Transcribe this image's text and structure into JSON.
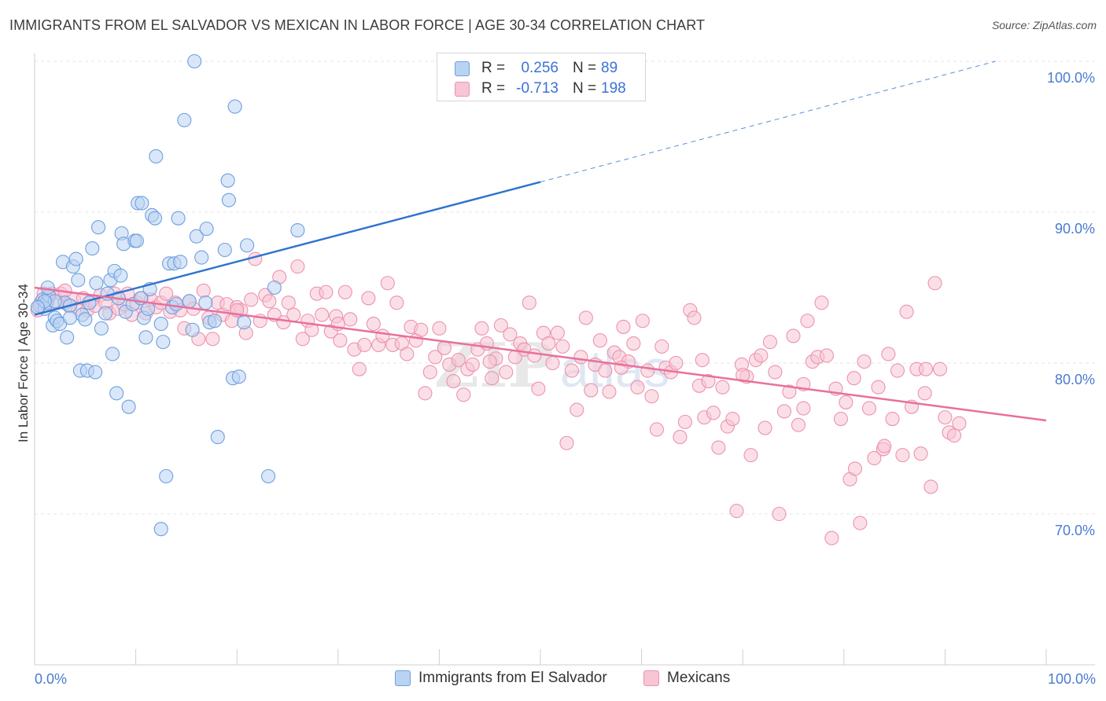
{
  "header": {
    "title": "IMMIGRANTS FROM EL SALVADOR VS MEXICAN IN LABOR FORCE | AGE 30-34 CORRELATION CHART",
    "source": "Source: ZipAtlas.com"
  },
  "legend": {
    "rows": [
      {
        "r_label": "R =",
        "r_value": "0.256",
        "n_label": "N =",
        "n_value": "89"
      },
      {
        "r_label": "R =",
        "r_value": "-0.713",
        "n_label": "N =",
        "n_value": "198"
      }
    ]
  },
  "bottom_legend": [
    "Immigrants from El Salvador",
    "Mexicans"
  ],
  "colors": {
    "blue_fill": "#b9d3f3",
    "blue_stroke": "#6f9fe0",
    "blue_line": "#2f73d0",
    "pink_fill": "#f7c5d4",
    "pink_stroke": "#ec93b0",
    "pink_line": "#e8709a",
    "tick_label": "#4a7bd0",
    "grid": "#e4e4e4"
  },
  "chart_data": {
    "type": "scatter",
    "title": "IMMIGRANTS FROM EL SALVADOR VS MEXICAN IN LABOR FORCE | AGE 30-34 CORRELATION CHART",
    "xlabel": "",
    "ylabel": "In Labor Force | Age 30-34",
    "xlim": [
      0,
      100
    ],
    "ylim": [
      60,
      102
    ],
    "x_tick_labels": [
      "0.0%",
      "100.0%"
    ],
    "y_ticks": [
      70,
      80,
      90,
      100
    ],
    "y_tick_labels": [
      "70.0%",
      "80.0%",
      "90.0%",
      "100.0%"
    ],
    "grid": true,
    "watermark": "ZIPatlas",
    "series": [
      {
        "name": "Immigrants from El Salvador",
        "color": "#6f9fe0",
        "r": 0.256,
        "n": 89,
        "trend": {
          "x0": 0,
          "y0": 83.2,
          "x1": 50,
          "y1": 92.0,
          "dashed_to_x": 95,
          "dashed_to_y": 100
        },
        "points": [
          [
            0.5,
            83.8
          ],
          [
            0.8,
            84.2
          ],
          [
            1.0,
            83.6
          ],
          [
            1.2,
            84.0
          ],
          [
            1.4,
            84.5
          ],
          [
            1.3,
            85.0
          ],
          [
            1.8,
            82.5
          ],
          [
            2.0,
            83.0
          ],
          [
            2.2,
            82.8
          ],
          [
            2.5,
            82.6
          ],
          [
            2.8,
            86.7
          ],
          [
            3.0,
            84.0
          ],
          [
            3.2,
            81.7
          ],
          [
            3.5,
            83.8
          ],
          [
            3.8,
            86.4
          ],
          [
            4.1,
            86.9
          ],
          [
            4.3,
            85.5
          ],
          [
            4.5,
            79.5
          ],
          [
            4.7,
            83.2
          ],
          [
            5.0,
            82.9
          ],
          [
            5.2,
            79.5
          ],
          [
            5.4,
            84.0
          ],
          [
            5.7,
            87.6
          ],
          [
            6.0,
            79.4
          ],
          [
            6.1,
            85.3
          ],
          [
            6.3,
            89.0
          ],
          [
            6.6,
            82.3
          ],
          [
            7.0,
            83.3
          ],
          [
            7.2,
            84.6
          ],
          [
            7.5,
            85.5
          ],
          [
            7.7,
            80.6
          ],
          [
            7.9,
            86.1
          ],
          [
            8.1,
            78.0
          ],
          [
            8.3,
            84.3
          ],
          [
            8.5,
            85.8
          ],
          [
            8.6,
            88.6
          ],
          [
            8.8,
            87.9
          ],
          [
            9.0,
            83.4
          ],
          [
            9.3,
            77.1
          ],
          [
            9.7,
            83.9
          ],
          [
            9.9,
            88.1
          ],
          [
            10.1,
            88.1
          ],
          [
            10.2,
            90.6
          ],
          [
            10.5,
            84.3
          ],
          [
            10.6,
            90.6
          ],
          [
            10.8,
            83.0
          ],
          [
            11.0,
            81.7
          ],
          [
            11.2,
            83.6
          ],
          [
            11.4,
            84.9
          ],
          [
            11.6,
            89.8
          ],
          [
            11.9,
            89.6
          ],
          [
            12.0,
            93.7
          ],
          [
            12.5,
            82.6
          ],
          [
            12.7,
            81.4
          ],
          [
            13.0,
            72.5
          ],
          [
            13.3,
            86.6
          ],
          [
            13.6,
            83.7
          ],
          [
            13.8,
            86.6
          ],
          [
            14.0,
            83.9
          ],
          [
            14.2,
            89.6
          ],
          [
            14.4,
            86.7
          ],
          [
            14.8,
            96.1
          ],
          [
            15.3,
            84.1
          ],
          [
            15.6,
            82.2
          ],
          [
            15.8,
            100.0
          ],
          [
            16.0,
            88.4
          ],
          [
            16.5,
            87.0
          ],
          [
            16.9,
            84.0
          ],
          [
            17.0,
            88.9
          ],
          [
            17.3,
            82.7
          ],
          [
            17.8,
            82.8
          ],
          [
            18.1,
            75.1
          ],
          [
            18.8,
            87.5
          ],
          [
            19.1,
            92.1
          ],
          [
            19.2,
            90.8
          ],
          [
            19.6,
            79.0
          ],
          [
            19.8,
            97.0
          ],
          [
            20.2,
            79.1
          ],
          [
            20.7,
            82.7
          ],
          [
            21.0,
            87.8
          ],
          [
            23.1,
            72.5
          ],
          [
            23.7,
            85.0
          ],
          [
            26.0,
            88.8
          ],
          [
            42.5,
            100.0
          ],
          [
            12.5,
            69.0
          ],
          [
            2.0,
            84.1
          ],
          [
            3.5,
            83.0
          ],
          [
            1.0,
            84.1
          ],
          [
            0.3,
            83.7
          ]
        ]
      },
      {
        "name": "Mexicans",
        "color": "#ec93b0",
        "r": -0.713,
        "n": 198,
        "trend": {
          "x0": 0,
          "y0": 85.0,
          "x1": 100,
          "y1": 76.2
        },
        "points": [
          [
            0.3,
            83.5
          ],
          [
            0.6,
            84.0
          ],
          [
            0.9,
            84.6
          ],
          [
            1.3,
            84.2
          ],
          [
            1.7,
            84.6
          ],
          [
            2.2,
            84.0
          ],
          [
            2.6,
            84.6
          ],
          [
            3.0,
            84.8
          ],
          [
            3.4,
            83.8
          ],
          [
            3.9,
            84.2
          ],
          [
            4.3,
            83.6
          ],
          [
            4.8,
            84.3
          ],
          [
            5.2,
            83.5
          ],
          [
            5.6,
            84.1
          ],
          [
            6.0,
            83.8
          ],
          [
            6.5,
            84.5
          ],
          [
            7.0,
            84.0
          ],
          [
            7.4,
            83.3
          ],
          [
            7.9,
            84.6
          ],
          [
            8.3,
            83.6
          ],
          [
            8.8,
            83.9
          ],
          [
            9.2,
            84.6
          ],
          [
            9.6,
            83.2
          ],
          [
            10.1,
            84.0
          ],
          [
            10.6,
            84.3
          ],
          [
            11.0,
            83.3
          ],
          [
            11.5,
            84.2
          ],
          [
            12.0,
            83.7
          ],
          [
            12.5,
            84.0
          ],
          [
            13.0,
            84.6
          ],
          [
            13.4,
            83.4
          ],
          [
            13.9,
            84.0
          ],
          [
            14.4,
            83.5
          ],
          [
            14.8,
            82.3
          ],
          [
            15.3,
            84.1
          ],
          [
            15.7,
            83.6
          ],
          [
            16.2,
            81.6
          ],
          [
            16.7,
            84.8
          ],
          [
            17.2,
            83.0
          ],
          [
            17.6,
            81.6
          ],
          [
            18.1,
            84.0
          ],
          [
            18.6,
            83.2
          ],
          [
            19.0,
            83.9
          ],
          [
            19.5,
            82.8
          ],
          [
            20.0,
            83.7
          ],
          [
            20.4,
            83.5
          ],
          [
            20.9,
            82.0
          ],
          [
            21.4,
            84.2
          ],
          [
            21.8,
            86.9
          ],
          [
            22.3,
            82.8
          ],
          [
            22.8,
            84.5
          ],
          [
            23.2,
            84.1
          ],
          [
            23.7,
            83.2
          ],
          [
            24.2,
            85.7
          ],
          [
            24.6,
            82.7
          ],
          [
            25.1,
            84.0
          ],
          [
            25.6,
            83.2
          ],
          [
            26.0,
            86.4
          ],
          [
            26.5,
            81.6
          ],
          [
            27.0,
            82.8
          ],
          [
            27.4,
            82.2
          ],
          [
            27.9,
            84.6
          ],
          [
            28.4,
            83.2
          ],
          [
            28.8,
            84.7
          ],
          [
            29.3,
            82.1
          ],
          [
            29.8,
            83.1
          ],
          [
            30.2,
            81.5
          ],
          [
            30.7,
            84.7
          ],
          [
            31.2,
            82.9
          ],
          [
            31.6,
            80.9
          ],
          [
            32.1,
            79.6
          ],
          [
            32.6,
            81.2
          ],
          [
            33.0,
            84.3
          ],
          [
            33.5,
            82.6
          ],
          [
            34.0,
            81.2
          ],
          [
            34.4,
            81.8
          ],
          [
            34.9,
            85.3
          ],
          [
            35.4,
            81.2
          ],
          [
            35.8,
            84.0
          ],
          [
            36.3,
            81.3
          ],
          [
            36.8,
            80.6
          ],
          [
            37.2,
            82.4
          ],
          [
            37.7,
            81.5
          ],
          [
            38.2,
            82.2
          ],
          [
            38.6,
            78.0
          ],
          [
            39.1,
            79.4
          ],
          [
            39.6,
            80.4
          ],
          [
            40.0,
            82.3
          ],
          [
            40.5,
            81.0
          ],
          [
            41.0,
            79.9
          ],
          [
            41.4,
            78.8
          ],
          [
            41.9,
            80.2
          ],
          [
            42.4,
            77.9
          ],
          [
            42.8,
            79.6
          ],
          [
            43.3,
            79.9
          ],
          [
            43.8,
            80.9
          ],
          [
            44.2,
            82.3
          ],
          [
            44.7,
            81.3
          ],
          [
            45.2,
            79.0
          ],
          [
            45.6,
            80.3
          ],
          [
            46.1,
            82.5
          ],
          [
            46.6,
            79.4
          ],
          [
            47.0,
            81.9
          ],
          [
            47.5,
            80.4
          ],
          [
            48.0,
            81.3
          ],
          [
            48.4,
            80.9
          ],
          [
            48.9,
            84.0
          ],
          [
            49.4,
            80.5
          ],
          [
            49.8,
            78.3
          ],
          [
            50.3,
            82.0
          ],
          [
            50.8,
            81.3
          ],
          [
            51.2,
            80.0
          ],
          [
            51.7,
            82.0
          ],
          [
            52.2,
            81.1
          ],
          [
            52.6,
            74.7
          ],
          [
            53.1,
            79.5
          ],
          [
            53.6,
            76.9
          ],
          [
            54.0,
            80.4
          ],
          [
            54.5,
            83.0
          ],
          [
            55.0,
            78.2
          ],
          [
            55.4,
            79.9
          ],
          [
            55.9,
            81.5
          ],
          [
            56.4,
            79.5
          ],
          [
            56.8,
            78.1
          ],
          [
            57.3,
            80.7
          ],
          [
            57.8,
            80.4
          ],
          [
            58.2,
            82.4
          ],
          [
            58.7,
            80.1
          ],
          [
            59.2,
            81.3
          ],
          [
            59.6,
            78.4
          ],
          [
            60.1,
            82.8
          ],
          [
            60.6,
            79.5
          ],
          [
            61.0,
            77.8
          ],
          [
            61.5,
            75.6
          ],
          [
            62.0,
            81.1
          ],
          [
            62.4,
            79.7
          ],
          [
            62.9,
            79.4
          ],
          [
            63.4,
            80.0
          ],
          [
            63.8,
            75.1
          ],
          [
            64.3,
            76.1
          ],
          [
            64.8,
            83.5
          ],
          [
            65.2,
            83.0
          ],
          [
            65.7,
            78.5
          ],
          [
            66.2,
            76.4
          ],
          [
            66.6,
            78.8
          ],
          [
            67.1,
            76.7
          ],
          [
            67.6,
            74.4
          ],
          [
            68.0,
            78.4
          ],
          [
            68.5,
            75.8
          ],
          [
            69.0,
            76.3
          ],
          [
            69.4,
            70.2
          ],
          [
            69.9,
            79.9
          ],
          [
            70.4,
            79.1
          ],
          [
            70.8,
            73.9
          ],
          [
            71.3,
            80.2
          ],
          [
            71.8,
            80.5
          ],
          [
            72.2,
            75.7
          ],
          [
            72.7,
            81.4
          ],
          [
            73.2,
            79.4
          ],
          [
            73.6,
            70.0
          ],
          [
            74.1,
            76.8
          ],
          [
            74.6,
            78.1
          ],
          [
            75.0,
            81.8
          ],
          [
            75.5,
            75.9
          ],
          [
            76.0,
            77.0
          ],
          [
            76.4,
            82.8
          ],
          [
            76.9,
            80.1
          ],
          [
            77.4,
            80.4
          ],
          [
            77.8,
            84.0
          ],
          [
            78.3,
            80.5
          ],
          [
            78.8,
            68.4
          ],
          [
            79.2,
            78.3
          ],
          [
            79.7,
            76.3
          ],
          [
            80.2,
            77.4
          ],
          [
            80.6,
            72.3
          ],
          [
            81.1,
            73.0
          ],
          [
            81.6,
            69.4
          ],
          [
            82.0,
            80.1
          ],
          [
            82.5,
            77.0
          ],
          [
            83.0,
            73.7
          ],
          [
            83.4,
            78.4
          ],
          [
            83.9,
            74.3
          ],
          [
            84.4,
            80.6
          ],
          [
            84.8,
            76.3
          ],
          [
            85.3,
            79.5
          ],
          [
            85.8,
            73.9
          ],
          [
            86.2,
            83.4
          ],
          [
            86.7,
            77.1
          ],
          [
            87.2,
            79.6
          ],
          [
            87.6,
            74.0
          ],
          [
            88.1,
            79.6
          ],
          [
            88.6,
            71.8
          ],
          [
            89.0,
            85.3
          ],
          [
            89.5,
            79.6
          ],
          [
            90.0,
            76.4
          ],
          [
            90.4,
            75.4
          ],
          [
            90.9,
            75.2
          ],
          [
            91.4,
            76.0
          ],
          [
            81.0,
            79.0
          ],
          [
            70.0,
            79.2
          ],
          [
            88.0,
            78.0
          ],
          [
            84.0,
            74.5
          ],
          [
            76.0,
            78.6
          ],
          [
            66.0,
            80.2
          ],
          [
            58.0,
            79.7
          ],
          [
            45.0,
            80.1
          ],
          [
            30.0,
            82.6
          ],
          [
            20.0,
            83.5
          ]
        ]
      }
    ]
  }
}
